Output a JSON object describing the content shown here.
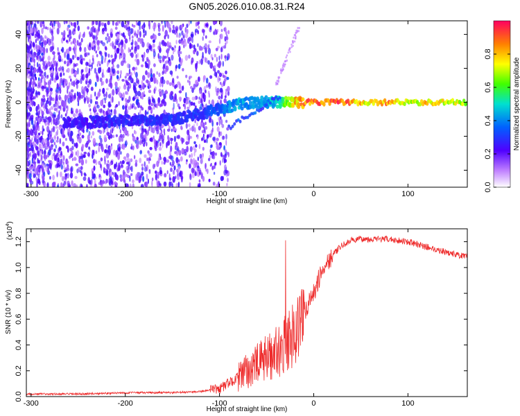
{
  "title": "GN05.2026.010.08.31.R24",
  "colors": {
    "snr_line": "#ee2b2b",
    "axis": "#000000"
  },
  "chart_data": [
    {
      "id": "spectrogram",
      "type": "heatmap",
      "xlabel": "Height of straight line (km)",
      "ylabel": "Frequency (Hz)",
      "xlim": [
        -305,
        163
      ],
      "ylim": [
        -50,
        48
      ],
      "x_ticks": [
        -300,
        -200,
        -100,
        0,
        100
      ],
      "x_tick_labels": [
        "-300",
        "-200",
        "-100",
        "0",
        "100"
      ],
      "y_ticks": [
        -40,
        -20,
        0,
        20,
        40
      ],
      "y_tick_labels": [
        "-40",
        "-20",
        "0",
        "20",
        "40"
      ],
      "colorbar": {
        "label": "Normalized spectral amplitude",
        "range": [
          0,
          1
        ],
        "ticks": [
          0,
          0.2,
          0.4,
          0.6,
          0.8
        ],
        "tick_labels": [
          "0.0",
          "0.2",
          "0.4",
          "0.6",
          "0.8"
        ]
      },
      "ridge": {
        "x": [
          -255,
          -150,
          -120,
          -100,
          -80,
          -60,
          -40,
          -30,
          -20,
          0,
          20,
          60,
          80,
          100,
          120,
          163
        ],
        "freq": [
          -12,
          -10,
          -7,
          -4,
          -1,
          0,
          0,
          0,
          0,
          0,
          0,
          0,
          0,
          0,
          0,
          0
        ],
        "amplitude": [
          0.25,
          0.3,
          0.3,
          0.35,
          0.45,
          0.4,
          0.5,
          0.6,
          0.8,
          0.9,
          0.95,
          0.75,
          0.85,
          0.7,
          0.8,
          0.7
        ]
      }
    },
    {
      "id": "snr",
      "type": "line",
      "xlabel": "Height of straight line (km)",
      "ylabel": "SNR (10 * v/v)",
      "y_multiplier_label": "(x10",
      "y_multiplier_exp": "4",
      "y_multiplier_close": ")",
      "xlim": [
        -305,
        163
      ],
      "ylim": [
        0,
        1.3
      ],
      "x_ticks": [
        -300,
        -200,
        -100,
        0,
        100
      ],
      "x_tick_labels": [
        "-300",
        "-200",
        "-100",
        "0",
        "100"
      ],
      "y_ticks": [
        0,
        0.2,
        0.4,
        0.6,
        0.8,
        1.0,
        1.2
      ],
      "y_tick_labels": [
        "0.0",
        "0.2",
        "0.4",
        "0.6",
        "0.8",
        "1.0",
        "1.2"
      ],
      "series": [
        {
          "name": "SNR",
          "x": [
            -305,
            -250,
            -200,
            -150,
            -120,
            -100,
            -80,
            -60,
            -40,
            -30,
            -20,
            0,
            10,
            20,
            30,
            40,
            50,
            80,
            100,
            120,
            140,
            163
          ],
          "y": [
            0.02,
            0.02,
            0.03,
            0.03,
            0.04,
            0.06,
            0.15,
            0.25,
            0.35,
            0.4,
            0.5,
            0.8,
            1.0,
            1.1,
            1.17,
            1.21,
            1.22,
            1.22,
            1.2,
            1.16,
            1.12,
            1.08
          ]
        }
      ]
    }
  ]
}
